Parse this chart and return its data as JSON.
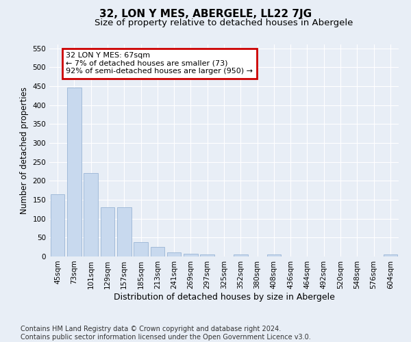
{
  "title": "32, LON Y MES, ABERGELE, LL22 7JG",
  "subtitle": "Size of property relative to detached houses in Abergele",
  "xlabel": "Distribution of detached houses by size in Abergele",
  "ylabel": "Number of detached properties",
  "categories": [
    "45sqm",
    "73sqm",
    "101sqm",
    "129sqm",
    "157sqm",
    "185sqm",
    "213sqm",
    "241sqm",
    "269sqm",
    "297sqm",
    "325sqm",
    "352sqm",
    "380sqm",
    "408sqm",
    "436sqm",
    "464sqm",
    "492sqm",
    "520sqm",
    "548sqm",
    "576sqm",
    "604sqm"
  ],
  "values": [
    165,
    447,
    220,
    130,
    130,
    38,
    25,
    11,
    7,
    6,
    0,
    5,
    0,
    5,
    0,
    0,
    0,
    0,
    0,
    0,
    5
  ],
  "bar_color": "#c8d9ee",
  "bar_edge_color": "#9ab5d5",
  "ylim": [
    0,
    560
  ],
  "yticks": [
    0,
    50,
    100,
    150,
    200,
    250,
    300,
    350,
    400,
    450,
    500,
    550
  ],
  "annotation_text": "32 LON Y MES: 67sqm\n← 7% of detached houses are smaller (73)\n92% of semi-detached houses are larger (950) →",
  "annotation_box_color": "#ffffff",
  "annotation_box_edge_color": "#cc0000",
  "background_color": "#e8eef6",
  "plot_bg_color": "#e8eef6",
  "grid_color": "#ffffff",
  "footer_line1": "Contains HM Land Registry data © Crown copyright and database right 2024.",
  "footer_line2": "Contains public sector information licensed under the Open Government Licence v3.0.",
  "title_fontsize": 11,
  "subtitle_fontsize": 9.5,
  "ylabel_fontsize": 8.5,
  "xlabel_fontsize": 9,
  "tick_fontsize": 7.5,
  "annotation_fontsize": 8,
  "footer_fontsize": 7
}
